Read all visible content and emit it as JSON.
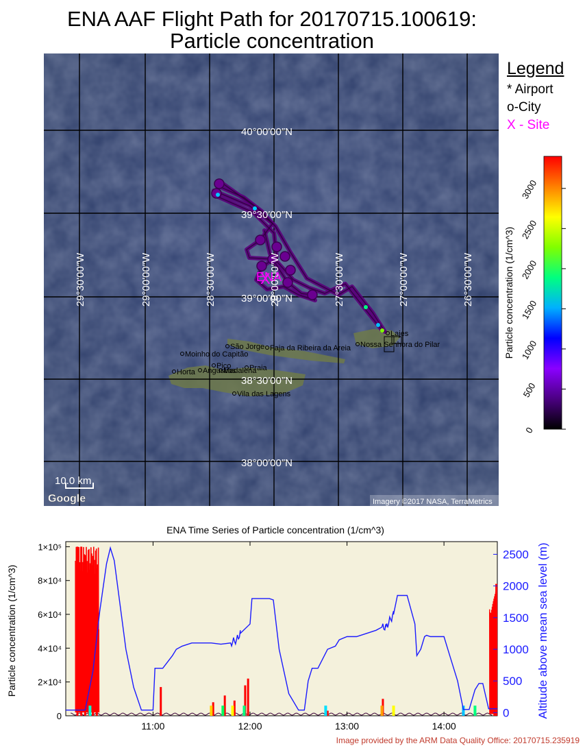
{
  "title_line1": "ENA AAF Flight Path for 20170715.100619:",
  "title_line2": "Particle concentration",
  "map": {
    "lat_labels": [
      "40°00′00″N",
      "39°30′00″N",
      "39°00′00″N",
      "38°30′00″N",
      "38°00′00″N"
    ],
    "lon_labels": [
      "29°30′00″W",
      "29°00′00″W",
      "28°30′00″W",
      "28°00′00″W",
      "27°30′00″W",
      "27°00′00″W",
      "26°30′00″W"
    ],
    "places": [
      "Moinho do Capitão",
      "São Jorge",
      "Faja da Ribeira da Areia",
      "Horta",
      "Angústias",
      "Pico",
      "Madalena",
      "Vila das Lagens",
      "Praia",
      "Nossa Senhora do Pilar",
      "Lajes"
    ],
    "site_label": "ENA",
    "scale_label": "10.0 km",
    "google_label": "Google",
    "imagery_label": "Imagery ©2017 NASA, TerraMetrics"
  },
  "legend": {
    "title": "Legend",
    "airport": "* Airport",
    "city": "o-City",
    "site": "X - Site",
    "site_color": "#ff00ff"
  },
  "colorbar": {
    "label": "Particle concentration  (1/cm^3)",
    "ticks": [
      0,
      500,
      1000,
      1500,
      2000,
      2500,
      3000
    ],
    "max": 3400,
    "colormap": [
      "#000000",
      "#4b0082",
      "#8a00ff",
      "#0000ff",
      "#00b0ff",
      "#00ff80",
      "#80ff00",
      "#ffff00",
      "#ff8000",
      "#ff0000"
    ]
  },
  "chart_data": {
    "type": "line",
    "title": "ENA Time Series of Particle concentration (1/cm^3)",
    "ylabel": "Particle concentration (1/cm^3)",
    "y2label": "Altitude above mean sea level (m)",
    "x_ticks": [
      "11:00",
      "12:00",
      "13:00",
      "14:00"
    ],
    "y_ticks": [
      "0",
      "2×10⁴",
      "4×10⁴",
      "6×10⁴",
      "8×10⁴",
      "1×10⁵"
    ],
    "y2_ticks": [
      "0",
      "500",
      "1000",
      "1500",
      "2000",
      "2500"
    ],
    "xlim_hours": [
      10.1,
      14.55
    ],
    "ylim": [
      0,
      103000
    ],
    "y2lim": [
      -50,
      2700
    ],
    "background": "#f4f1dc",
    "series": [
      {
        "color": "#1a1aff",
        "axis": "right",
        "x": [
          10.1,
          10.3,
          10.38,
          10.45,
          10.52,
          10.56,
          10.6,
          10.66,
          10.72,
          10.8,
          10.88,
          10.96,
          11.0,
          11.02,
          11.1,
          11.2,
          11.24,
          11.3,
          11.4,
          11.5,
          11.6,
          11.7,
          11.8,
          11.86,
          11.9,
          12.0,
          12.02,
          12.1,
          12.2,
          12.24,
          12.3,
          12.4,
          12.5,
          12.56,
          12.6,
          12.64,
          12.7,
          12.8,
          12.88,
          12.92,
          13.0,
          13.1,
          13.2,
          13.3,
          13.36,
          13.4,
          13.48,
          13.52,
          13.58,
          13.62,
          13.7,
          13.72,
          13.76,
          13.8,
          13.82,
          13.86,
          14.0,
          14.06,
          14.14,
          14.2,
          14.26,
          14.32,
          14.36,
          14.4,
          14.46,
          14.5,
          14.55
        ],
        "y": [
          40,
          40,
          650,
          1600,
          2350,
          2600,
          2400,
          1700,
          1000,
          400,
          40,
          40,
          40,
          700,
          700,
          900,
          1000,
          1050,
          1100,
          1100,
          1100,
          1080,
          1100,
          1150,
          1250,
          1400,
          1800,
          1800,
          1800,
          1780,
          1000,
          300,
          40,
          40,
          500,
          700,
          700,
          1000,
          1050,
          1150,
          1200,
          1200,
          1250,
          1300,
          1350,
          1350,
          1550,
          1850,
          1850,
          1850,
          1400,
          900,
          1000,
          1200,
          1220,
          1200,
          1200,
          900,
          500,
          50,
          50,
          360,
          460,
          460,
          60,
          60,
          60
        ]
      },
      {
        "color": "#ff0000",
        "axis": "left",
        "spike_x": [
          10.22,
          10.26,
          10.3,
          10.34,
          10.38,
          10.42,
          11.08,
          11.62,
          11.74,
          11.84,
          11.95,
          11.98,
          12.8,
          13.37,
          14.52,
          14.54
        ],
        "spike_y": [
          100000,
          100000,
          95000,
          70000,
          89000,
          25000,
          17000,
          8000,
          12000,
          9000,
          18000,
          22000,
          3000,
          10000,
          55000,
          78000
        ]
      }
    ]
  },
  "credit": "Image provided by the ARM Data Quality Office: 20170715.235919"
}
